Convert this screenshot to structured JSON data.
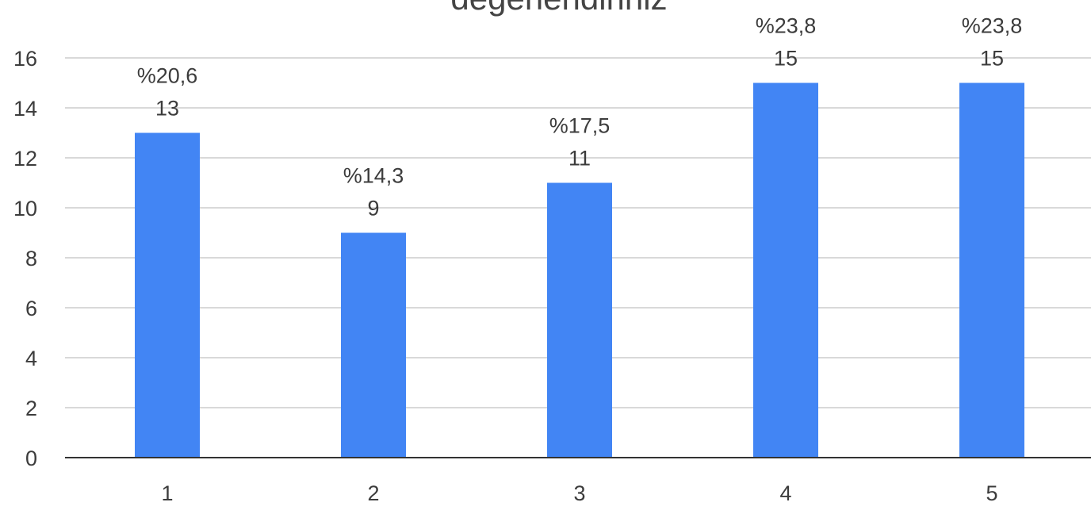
{
  "chart_data": {
    "type": "bar",
    "title": "değerlendiriniz",
    "categories": [
      "1",
      "2",
      "3",
      "4",
      "5"
    ],
    "values": [
      13,
      9,
      11,
      15,
      15
    ],
    "percent_labels": [
      "%20,6",
      "%14,3",
      "%17,5",
      "%23,8",
      "%23,8"
    ],
    "ylim": [
      0,
      16
    ],
    "yticks": [
      0,
      2,
      4,
      6,
      8,
      10,
      12,
      14,
      16
    ],
    "grid": true,
    "legend": "none",
    "bar_color": "#4285f4"
  }
}
